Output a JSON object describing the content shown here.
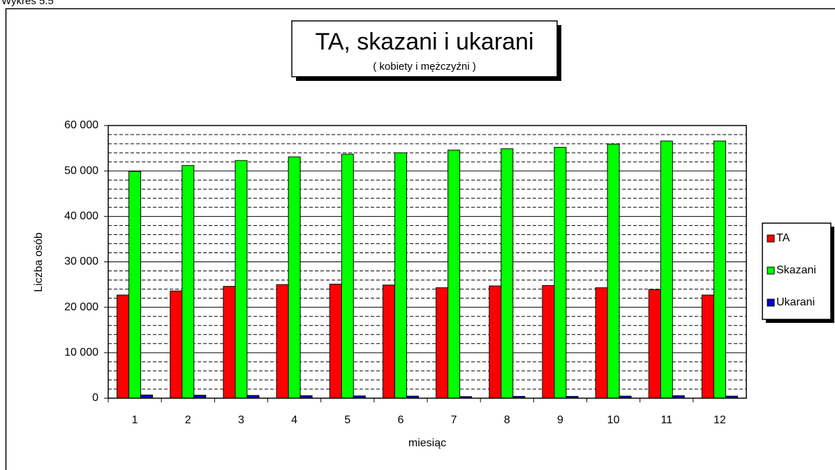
{
  "page_label": "Wykres 5.5",
  "chart_data": {
    "type": "bar",
    "title": "TA, skazani i ukarani",
    "subtitle": "( kobiety i mężczyźni )",
    "x_label": "miesiąc",
    "y_label": "Liczba osób",
    "categories": [
      "1",
      "2",
      "3",
      "4",
      "5",
      "6",
      "7",
      "8",
      "9",
      "10",
      "11",
      "12"
    ],
    "series": [
      {
        "name": "TA",
        "color": "#ff0000",
        "values": [
          22700,
          23600,
          24600,
          25000,
          25100,
          24900,
          24300,
          24700,
          24800,
          24300,
          23900,
          22700
        ]
      },
      {
        "name": "Skazani",
        "color": "#00ff00",
        "values": [
          49900,
          51200,
          52300,
          53100,
          53700,
          54000,
          54600,
          54900,
          55200,
          55900,
          56600,
          56600
        ]
      },
      {
        "name": "Ukarani",
        "color": "#0000cc",
        "values": [
          700,
          650,
          600,
          550,
          500,
          450,
          350,
          400,
          400,
          450,
          550,
          450
        ]
      }
    ],
    "ylim": [
      0,
      60000
    ],
    "yticks": [
      0,
      {
        "value": 10000,
        "label": "10 000"
      },
      {
        "value": 20000,
        "label": "20 000"
      },
      {
        "value": 30000,
        "label": "30 000"
      },
      {
        "value": 40000,
        "label": "40 000"
      },
      {
        "value": 50000,
        "label": "50 000"
      },
      {
        "value": 60000,
        "label": "60 000"
      }
    ],
    "minor_yticks": [
      2000,
      4000,
      6000,
      8000,
      12000,
      14000,
      16000,
      18000,
      22000,
      24000,
      26000,
      28000,
      32000,
      34000,
      36000,
      38000,
      42000,
      44000,
      46000,
      48000,
      52000,
      54000,
      56000,
      58000
    ],
    "grid": true,
    "legend": "right"
  }
}
